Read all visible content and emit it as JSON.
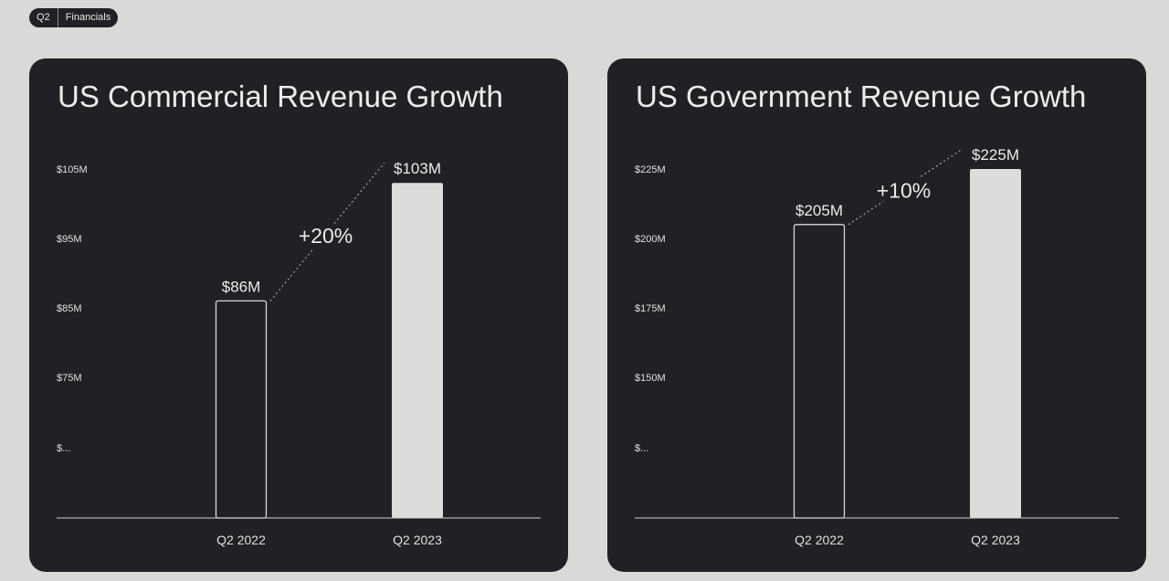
{
  "tag": {
    "quarter": "Q2",
    "section": "Financials"
  },
  "chart_data": [
    {
      "type": "bar",
      "title": "US Commercial Revenue Growth",
      "categories": [
        "Q2 2022",
        "Q2 2023"
      ],
      "values": [
        86,
        103
      ],
      "value_labels": [
        "$86M",
        "$103M"
      ],
      "y_ticks": [
        105,
        95,
        85,
        75
      ],
      "y_tick_labels": [
        "$105M",
        "$95M",
        "$85M",
        "$75M",
        "$..."
      ],
      "growth_label": "+20%",
      "colors": {
        "first_bar": "outline",
        "second_bar": "#dcdcdc",
        "background": "#1f2124"
      }
    },
    {
      "type": "bar",
      "title": "US Government Revenue Growth",
      "categories": [
        "Q2 2022",
        "Q2 2023"
      ],
      "values": [
        205,
        225
      ],
      "value_labels": [
        "$205M",
        "$225M"
      ],
      "y_ticks": [
        225,
        200,
        175,
        150
      ],
      "y_tick_labels": [
        "$225M",
        "$200M",
        "$175M",
        "$150M",
        "$..."
      ],
      "growth_label": "+10%",
      "colors": {
        "first_bar": "outline",
        "second_bar": "#dcdcdc",
        "background": "#1f2124"
      }
    }
  ]
}
